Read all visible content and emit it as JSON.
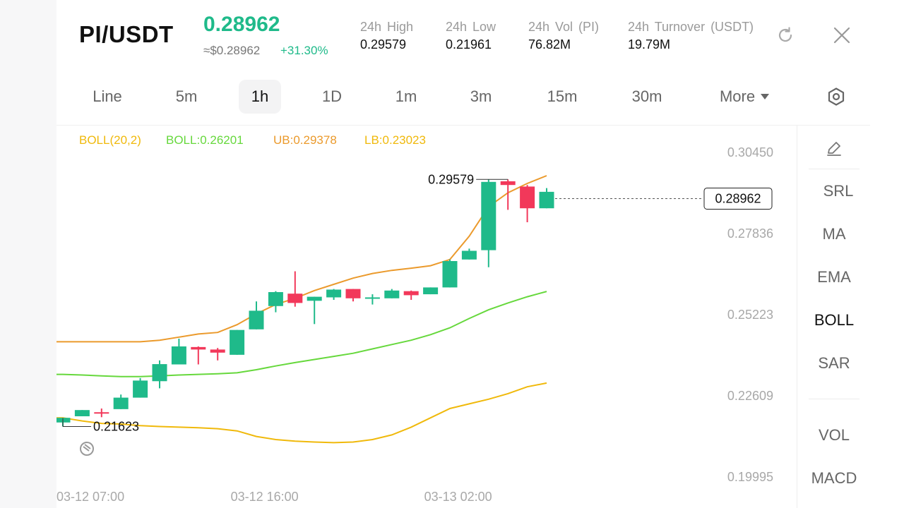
{
  "header": {
    "pair": "PI/USDT",
    "price": "0.28962",
    "usd_price": "≈$0.28962",
    "change": "+31.30%",
    "stats": [
      {
        "label": "24h  High",
        "value": "0.29579"
      },
      {
        "label": "24h  Low",
        "value": "0.21961"
      },
      {
        "label": "24h  Vol (PI)",
        "value": "76.82M"
      },
      {
        "label": "24h  Turnover (USDT)",
        "value": "19.79M"
      }
    ]
  },
  "tabs": [
    "Line",
    "5m",
    "1h",
    "1D",
    "1m",
    "3m",
    "15m",
    "30m",
    "More"
  ],
  "active_tab": "1h",
  "legend": {
    "boll": "BOLL(20,2)",
    "mid": "BOLL:0.26201",
    "ub": "UB:0.29378",
    "lb": "LB:0.23023"
  },
  "indicators": [
    "SRL",
    "MA",
    "EMA",
    "BOLL",
    "SAR",
    "VOL",
    "MACD"
  ],
  "active_indicator": "BOLL",
  "colors": {
    "up": "#1fba8a",
    "down": "#f2385a",
    "boll": "#f0b90b",
    "mid": "#66d83c",
    "ub": "#eb9a2c",
    "lb": "#f0b90b"
  },
  "chart_data": {
    "type": "candlestick",
    "y_ticks": [
      "0.30450",
      "0.27836",
      "0.25223",
      "0.22609",
      "0.19995"
    ],
    "y_tick_values": [
      0.3045,
      0.27836,
      0.25223,
      0.22609,
      0.19995
    ],
    "x_labels": [
      "03-12 07:00",
      "03-12 16:00",
      "03-13 02:00"
    ],
    "x_label_index": [
      0,
      9,
      19
    ],
    "last_price": "0.28962",
    "max_label": "0.29579",
    "min_label": "0.21623",
    "max_index": 23,
    "min_index": 0,
    "candles": [
      {
        "o": 0.2175,
        "h": 0.2185,
        "l": 0.2162,
        "c": 0.219
      },
      {
        "o": 0.2195,
        "h": 0.2215,
        "l": 0.2195,
        "c": 0.2215
      },
      {
        "o": 0.2208,
        "h": 0.222,
        "l": 0.2192,
        "c": 0.2205
      },
      {
        "o": 0.2218,
        "h": 0.2265,
        "l": 0.2218,
        "c": 0.2255
      },
      {
        "o": 0.2255,
        "h": 0.2318,
        "l": 0.2255,
        "c": 0.231
      },
      {
        "o": 0.2308,
        "h": 0.2375,
        "l": 0.2285,
        "c": 0.2363
      },
      {
        "o": 0.2362,
        "h": 0.2445,
        "l": 0.2362,
        "c": 0.242
      },
      {
        "o": 0.2418,
        "h": 0.242,
        "l": 0.2362,
        "c": 0.241
      },
      {
        "o": 0.241,
        "h": 0.2415,
        "l": 0.2375,
        "c": 0.24
      },
      {
        "o": 0.2393,
        "h": 0.2473,
        "l": 0.2393,
        "c": 0.2473
      },
      {
        "o": 0.2475,
        "h": 0.2565,
        "l": 0.2475,
        "c": 0.2535
      },
      {
        "o": 0.255,
        "h": 0.2598,
        "l": 0.253,
        "c": 0.2595
      },
      {
        "o": 0.259,
        "h": 0.2662,
        "l": 0.2548,
        "c": 0.256
      },
      {
        "o": 0.2567,
        "h": 0.258,
        "l": 0.2492,
        "c": 0.258
      },
      {
        "o": 0.2578,
        "h": 0.2605,
        "l": 0.257,
        "c": 0.2603
      },
      {
        "o": 0.2605,
        "h": 0.2605,
        "l": 0.2565,
        "c": 0.2575
      },
      {
        "o": 0.2578,
        "h": 0.2588,
        "l": 0.2555,
        "c": 0.2578
      },
      {
        "o": 0.2575,
        "h": 0.2605,
        "l": 0.2575,
        "c": 0.26
      },
      {
        "o": 0.2598,
        "h": 0.26,
        "l": 0.257,
        "c": 0.2585
      },
      {
        "o": 0.2588,
        "h": 0.261,
        "l": 0.2588,
        "c": 0.261
      },
      {
        "o": 0.261,
        "h": 0.27,
        "l": 0.261,
        "c": 0.2695
      },
      {
        "o": 0.27,
        "h": 0.2735,
        "l": 0.27,
        "c": 0.2728
      },
      {
        "o": 0.273,
        "h": 0.2958,
        "l": 0.2675,
        "c": 0.295
      },
      {
        "o": 0.2952,
        "h": 0.2958,
        "l": 0.286,
        "c": 0.294
      },
      {
        "o": 0.2935,
        "h": 0.294,
        "l": 0.282,
        "c": 0.2865
      },
      {
        "o": 0.2865,
        "h": 0.293,
        "l": 0.2865,
        "c": 0.2918
      }
    ],
    "ub": [
      0.2435,
      0.2435,
      0.2435,
      0.2435,
      0.2435,
      0.244,
      0.245,
      0.246,
      0.2465,
      0.249,
      0.2525,
      0.2555,
      0.2575,
      0.26,
      0.262,
      0.264,
      0.2655,
      0.2665,
      0.2672,
      0.268,
      0.27,
      0.2775,
      0.287,
      0.2915,
      0.2945,
      0.297
    ],
    "mid": [
      0.233,
      0.2328,
      0.2325,
      0.2323,
      0.2323,
      0.2325,
      0.2328,
      0.233,
      0.2332,
      0.2335,
      0.2345,
      0.2357,
      0.2368,
      0.2378,
      0.2388,
      0.2398,
      0.2412,
      0.2426,
      0.244,
      0.2458,
      0.248,
      0.251,
      0.2538,
      0.256,
      0.258,
      0.2597
    ],
    "lb": [
      0.219,
      0.218,
      0.2172,
      0.217,
      0.2165,
      0.2162,
      0.216,
      0.2158,
      0.2155,
      0.2148,
      0.213,
      0.212,
      0.2115,
      0.2112,
      0.211,
      0.2112,
      0.212,
      0.2135,
      0.216,
      0.219,
      0.222,
      0.2235,
      0.225,
      0.2268,
      0.229,
      0.2302
    ]
  }
}
